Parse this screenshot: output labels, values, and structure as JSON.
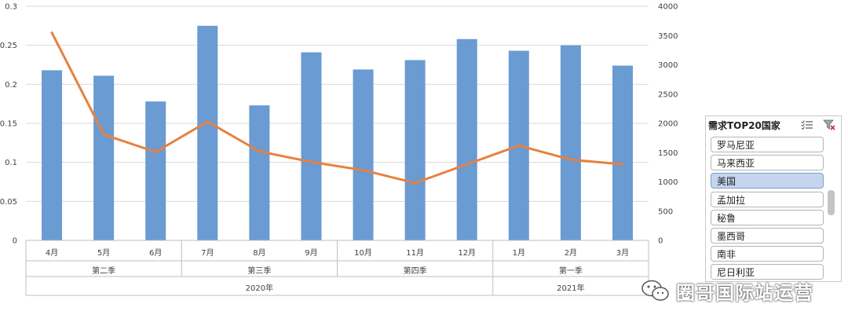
{
  "chart_data": {
    "type": "bar+line",
    "categories": [
      "4月",
      "5月",
      "6月",
      "7月",
      "8月",
      "9月",
      "10月",
      "11月",
      "12月",
      "1月",
      "2月",
      "3月"
    ],
    "quarter_groups": [
      {
        "label": "第二季",
        "span": 3
      },
      {
        "label": "第三季",
        "span": 3
      },
      {
        "label": "第四季",
        "span": 3
      },
      {
        "label": "第一季",
        "span": 3
      }
    ],
    "year_groups": [
      {
        "label": "2020年",
        "span": 9
      },
      {
        "label": "2021年",
        "span": 3
      }
    ],
    "series": [
      {
        "type": "bar",
        "axis": "left",
        "values": [
          0.218,
          0.211,
          0.178,
          0.275,
          0.173,
          0.241,
          0.219,
          0.231,
          0.258,
          0.243,
          0.25,
          0.224
        ]
      },
      {
        "type": "line",
        "axis": "right",
        "values": [
          3550,
          1810,
          1510,
          2030,
          1520,
          1340,
          1200,
          980,
          1300,
          1620,
          1380,
          1300
        ]
      }
    ],
    "y_left": {
      "min": 0,
      "max": 0.3,
      "ticks": [
        "0",
        "0.05",
        "0.1",
        "0.15",
        "0.2",
        "0.25",
        "0.3"
      ]
    },
    "y_right": {
      "min": 0,
      "max": 4000,
      "ticks": [
        "0",
        "500",
        "1000",
        "1500",
        "2000",
        "2500",
        "3000",
        "3500",
        "4000"
      ]
    },
    "grid": true,
    "colors": {
      "bar": "#6a9bd2",
      "line": "#e8803f",
      "grid": "#d9d9d9"
    }
  },
  "slicer": {
    "title": "需求TOP20国家",
    "multiselect_icon": "multi-select-icon",
    "clear_filter_icon": "clear-filter-icon",
    "items": [
      {
        "label": "罗马尼亚",
        "selected": false
      },
      {
        "label": "马来西亚",
        "selected": false
      },
      {
        "label": "美国",
        "selected": true
      },
      {
        "label": "孟加拉",
        "selected": false
      },
      {
        "label": "秘鲁",
        "selected": false
      },
      {
        "label": "墨西哥",
        "selected": false
      },
      {
        "label": "南非",
        "selected": false
      },
      {
        "label": "尼日利亚",
        "selected": false
      }
    ]
  },
  "watermark": {
    "text": "圈哥国际站运营",
    "icon": "wechat-icon"
  }
}
